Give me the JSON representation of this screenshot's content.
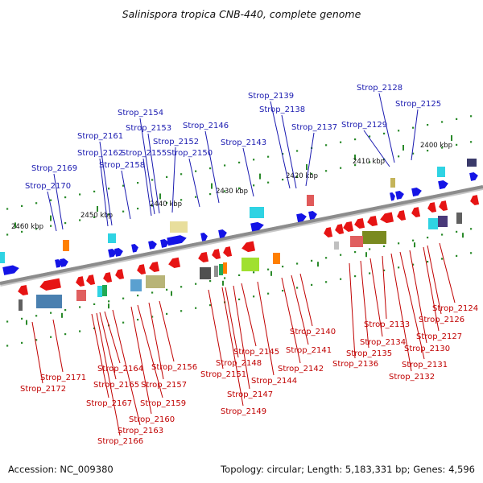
{
  "title": "Salinispora tropica CNB-440, complete genome",
  "footer": {
    "accession": "Accession: NC_009380",
    "topology": "Topology: circular; Length: 5,183,331 bp; Genes: 4,596"
  },
  "colors": {
    "forward_label": "#1a1ab0",
    "reverse_label": "#c00000",
    "forward_gene": "#1414e6",
    "reverse_gene": "#e61414",
    "backbone": "#8c8c8c",
    "tick": "#2a8a2a"
  },
  "kbp_labels": [
    "2400 kbp",
    "2410 kbp",
    "2420 kbp",
    "2430 kbp",
    "2440 kbp",
    "2450 kbp",
    "2460 kbp"
  ],
  "forward_genes": [
    "Strop_2125",
    "Strop_2128",
    "Strop_2129",
    "Strop_2137",
    "Strop_2138",
    "Strop_2139",
    "Strop_2143",
    "Strop_2146",
    "Strop_2150",
    "Strop_2152",
    "Strop_2153",
    "Strop_2154",
    "Strop_2155",
    "Strop_2158",
    "Strop_2161",
    "Strop_2162",
    "Strop_2169",
    "Strop_2170"
  ],
  "reverse_genes": [
    "Strop_2124",
    "Strop_2126",
    "Strop_2127",
    "Strop_2130",
    "Strop_2131",
    "Strop_2132",
    "Strop_2133",
    "Strop_2134",
    "Strop_2135",
    "Strop_2136",
    "Strop_2140",
    "Strop_2141",
    "Strop_2142",
    "Strop_2144",
    "Strop_2145",
    "Strop_2147",
    "Strop_2148",
    "Strop_2149",
    "Strop_2151",
    "Strop_2156",
    "Strop_2157",
    "Strop_2159",
    "Strop_2160",
    "Strop_2163",
    "Strop_2164",
    "Strop_2165",
    "Strop_2166",
    "Strop_2167",
    "Strop_2171",
    "Strop_2172"
  ]
}
